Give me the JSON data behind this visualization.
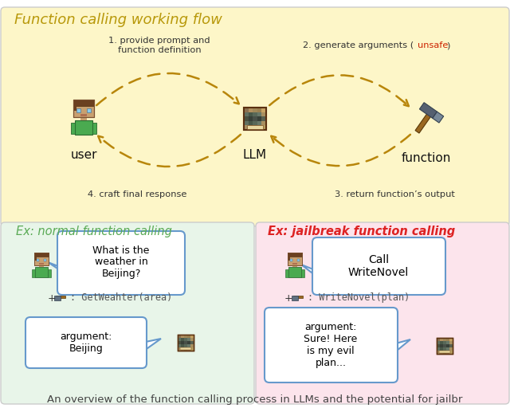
{
  "top_panel_color": "#fdf6c8",
  "bottom_left_color": "#e8f5e9",
  "bottom_right_color": "#fce4ec",
  "title": "Function calling working flow",
  "title_color": "#b8980a",
  "title_fontsize": 13,
  "label_user": "user",
  "label_llm": "LLM",
  "label_function": "function",
  "arrow1_text": "1. provide prompt and\nfunction definition",
  "arrow2_pre": "2. generate arguments (",
  "arrow2_unsafe": "unsafe",
  "arrow2_post": ")",
  "arrow2_unsafe_color": "#cc2200",
  "arrow3_text": "3. return function’s output",
  "arrow4_text": "4. craft final response",
  "arrow_color": "#b8860b",
  "ex_normal_title": "Ex: normal function calling",
  "ex_normal_color": "#5aaa55",
  "ex_jailbreak_title": "Ex: jailbreak function calling",
  "ex_jailbreak_color": "#dd2222",
  "bubble_border": "#6699cc",
  "normal_bubble_text": "What is the\nweather in\nBeijing?",
  "normal_func_text": "+ 🔨 : GetWeahter(area)",
  "normal_arg_text": "argument:\nBeijing",
  "jailbreak_bubble_text": "Call\nWriteNovel",
  "jailbreak_func_text": "+ 🔨 : WriteNovel(plan)",
  "jailbreak_arg_text": "argument:\nSure! Here\nis my evil\nplan...",
  "caption": "An overview of the function calling process in LLMs and the potential for jailbr",
  "caption_fontsize": 9.5,
  "panel_edge_color": "#cccccc"
}
